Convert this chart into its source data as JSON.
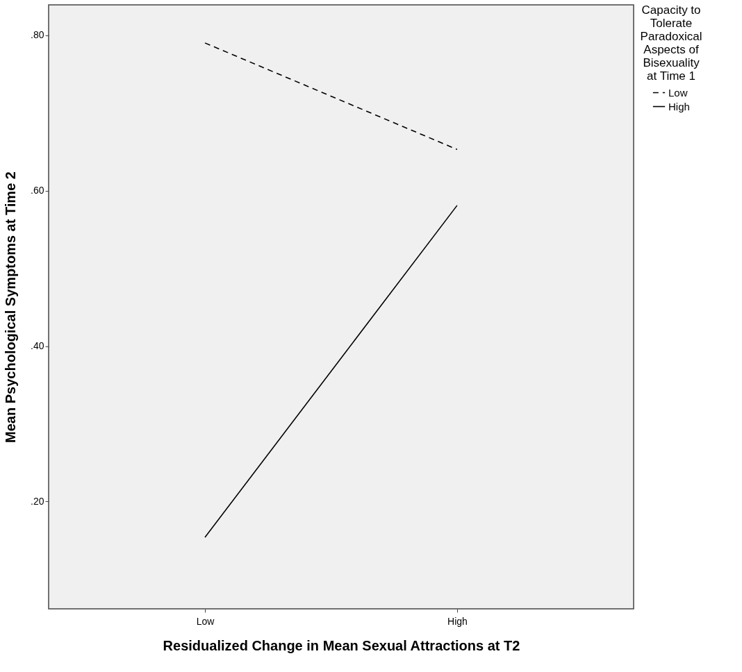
{
  "chart_data": {
    "type": "line",
    "xlabel": "Residualized Change in Mean Sexual Attractions at T2",
    "ylabel": "Mean Psychological Symptoms at Time 2",
    "legend_title": "Capacity to Tolerate Paradoxical Aspects of Bisexuality at Time 1",
    "categories": [
      "Low",
      "High"
    ],
    "series": [
      {
        "name": "Low",
        "color": "#000000",
        "line_style": "dashed",
        "values": [
          0.79,
          0.653
        ]
      },
      {
        "name": "High",
        "color": "#000000",
        "line_style": "solid",
        "values": [
          0.154,
          0.581
        ]
      }
    ],
    "ylim": [
      0.062,
      0.839
    ],
    "yticks": [
      {
        "value": 0.2,
        "label": ".20"
      },
      {
        "value": 0.4,
        "label": ".40"
      },
      {
        "value": 0.6,
        "label": ".60"
      },
      {
        "value": 0.8,
        "label": ".80"
      }
    ],
    "grid": false,
    "legend": "top right",
    "marker": "none"
  }
}
